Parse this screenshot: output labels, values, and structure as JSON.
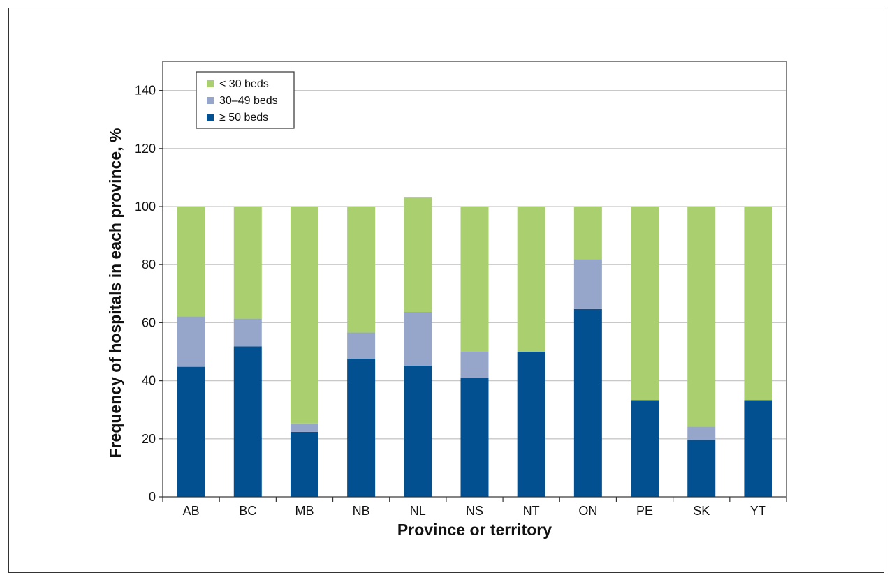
{
  "chart_data": {
    "type": "bar",
    "stacked": true,
    "categories": [
      "AB",
      "BC",
      "MB",
      "NB",
      "NL",
      "NS",
      "NT",
      "ON",
      "PE",
      "SK",
      "YT"
    ],
    "series": [
      {
        "name": "≥ 50 beds",
        "color": "#02508f",
        "values": [
          44.8,
          51.8,
          22.4,
          47.6,
          45.2,
          41.0,
          50.0,
          64.7,
          33.3,
          19.6,
          33.3
        ]
      },
      {
        "name": "30–49 beds",
        "color": "#96a6cb",
        "values": [
          17.4,
          9.6,
          2.9,
          9.0,
          18.5,
          9.0,
          0,
          17.2,
          0,
          4.6,
          0
        ]
      },
      {
        "name": "< 30 beds",
        "color": "#a9cf6e",
        "values": [
          37.8,
          38.6,
          74.7,
          43.4,
          39.4,
          50.0,
          50.0,
          18.1,
          66.7,
          75.8,
          66.7
        ]
      }
    ],
    "legend_order": [
      "< 30 beds",
      "30–49 beds",
      "≥ 50 beds"
    ],
    "xlabel": "Province or territory",
    "ylabel": "Frequency of hospitals in each province, %",
    "ylim": [
      0,
      150
    ],
    "yticks": [
      0,
      20,
      40,
      60,
      80,
      100,
      120,
      140
    ],
    "grid": true,
    "legend_position": "top-left"
  }
}
